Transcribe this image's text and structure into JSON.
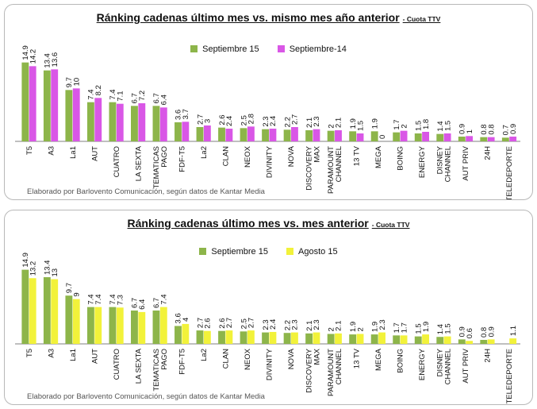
{
  "chart_data": [
    {
      "type": "bar",
      "title": "Ránking cadenas último mes vs. mismo mes año anterior",
      "subtitle": "- Cuota TTV",
      "xlabel": "",
      "ylabel": "",
      "ylim": [
        0,
        15
      ],
      "grid": false,
      "legend": "top-center",
      "categories": [
        "T5",
        "A3",
        "La1",
        "AUT",
        "CUATRO",
        "LA SEXTA",
        "TEMATICAS PAGO",
        "FDF-T5",
        "La2",
        "CLAN",
        "NEOX",
        "DIVINITY",
        "NOVA",
        "DISCOVERY MAX",
        "PARAMOUNT CHANNEL",
        "13 TV",
        "MEGA",
        "BOING",
        "ENERGY",
        "DISNEY CHANNEL",
        "AUT PRIV",
        "24H",
        "TELEDEPORTE"
      ],
      "series": [
        {
          "name": "Septiembre 15",
          "color": "#8db54a",
          "values": [
            14.9,
            13.4,
            9.7,
            7.4,
            7.4,
            6.7,
            6.7,
            3.6,
            2.7,
            2.6,
            2.5,
            2.3,
            2.2,
            2.1,
            2,
            1.9,
            1.9,
            1.7,
            1.5,
            1.4,
            0.9,
            0.8,
            0.7
          ]
        },
        {
          "name": "Septiembre-14",
          "color": "#d957e6",
          "values": [
            14.2,
            13.6,
            10,
            8.2,
            7.1,
            7.2,
            6.4,
            3.7,
            3,
            2.4,
            2.8,
            2.4,
            2.7,
            2.3,
            2.1,
            1.5,
            0,
            2,
            1.8,
            1.5,
            1,
            0.8,
            0.9
          ]
        }
      ],
      "footnote": "Elaborado por Barlovento Comunicación, según datos de Kantar Media"
    },
    {
      "type": "bar",
      "title": "Ránking cadenas último mes vs. mes anterior",
      "subtitle": "- Cuota TTV",
      "xlabel": "",
      "ylabel": "",
      "ylim": [
        0,
        15
      ],
      "grid": false,
      "legend": "top-center",
      "categories": [
        "T5",
        "A3",
        "La1",
        "AUT",
        "CUATRO",
        "LA SEXTA",
        "TEMATICAS PAGO",
        "FDF-T5",
        "La2",
        "CLAN",
        "NEOX",
        "DIVINITY",
        "NOVA",
        "DISCOVERY MAX",
        "PARAMOUNT CHANNEL",
        "13 TV",
        "MEGA",
        "BOING",
        "ENERGY",
        "DISNEY CHANNEL",
        "AUT PRIV",
        "24H",
        "TELEDEPORTE"
      ],
      "series": [
        {
          "name": "Septiembre 15",
          "color": "#8db54a",
          "values": [
            14.9,
            13.4,
            9.7,
            7.4,
            7.4,
            6.7,
            6.7,
            3.6,
            2.7,
            2.6,
            2.5,
            2.3,
            2.2,
            2.1,
            2,
            1.9,
            1.9,
            1.7,
            1.5,
            1.4,
            0.9,
            0.8,
            null
          ]
        },
        {
          "name": "Agosto 15",
          "color": "#f2f23a",
          "values": [
            13.2,
            13,
            9,
            7.4,
            7.3,
            6.4,
            7.4,
            4,
            2.6,
            2.7,
            2.7,
            2.4,
            2.3,
            2.3,
            2.1,
            2,
            2.3,
            1.7,
            1.9,
            1.5,
            0.6,
            0.9,
            1.1
          ]
        }
      ],
      "footnote": "Elaborado por Barlovento Comunicación, según datos de Kantar Media"
    }
  ]
}
